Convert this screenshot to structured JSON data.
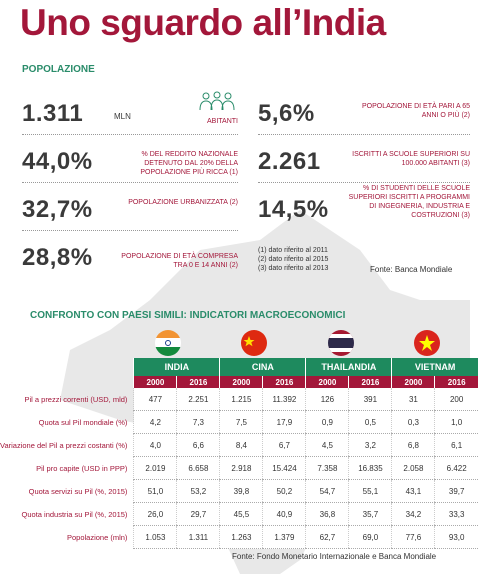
{
  "header": {
    "title": "Uno sguardo all’India"
  },
  "population": {
    "heading": "POPOLAZIONE",
    "stats": [
      {
        "value": "1.311",
        "unit": "MLN",
        "label": "ABITANTI"
      },
      {
        "value": "44,0%",
        "label": "% DEL REDDITO NAZIONALE DETENUTO DAL 20% DELLA POPOLAZIONE PIÙ RICCA (1)"
      },
      {
        "value": "32,7%",
        "label": "POPOLAZIONE URBANIZZATA (2)"
      },
      {
        "value": "28,8%",
        "label": "POPOLAZIONE DI ETÀ COMPRESA TRA 0 E 14 ANNI (2)"
      },
      {
        "value": "5,6%",
        "label": "POPOLAZIONE DI ETÀ PARI A 65 ANNI O PIÙ (2)"
      },
      {
        "value": "2.261",
        "label": "ISCRITTI A SCUOLE SUPERIORI SU 100.000 ABITANTI (3)"
      },
      {
        "value": "14,5%",
        "label": "% DI STUDENTI DELLE SCUOLE SUPERIORI ISCRITTI A PROGRAMMI DI INGEGNERIA, INDUSTRIA E COSTRUZIONI (3)"
      }
    ],
    "notes": [
      "(1) dato riferito al 2011",
      "(2) dato riferito al 2015",
      "(3) dato riferito al 2013"
    ],
    "source": "Fonte: Banca Mondiale"
  },
  "comparison": {
    "heading": "CONFRONTO CON PAESI SIMILI: INDICATORI MACROECONOMICI",
    "countries": [
      "INDIA",
      "CINA",
      "THAILANDIA",
      "VIETNAM"
    ],
    "years": [
      "2000",
      "2016"
    ],
    "rows": [
      {
        "label": "Pil a prezzi correnti (USD, mld)",
        "values": [
          "477",
          "2.251",
          "1.215",
          "11.392",
          "126",
          "391",
          "31",
          "200"
        ]
      },
      {
        "label": "Quota sul Pil mondiale (%)",
        "values": [
          "4,2",
          "7,3",
          "7,5",
          "17,9",
          "0,9",
          "0,5",
          "0,3",
          "1,0"
        ]
      },
      {
        "label": "Variazione del Pil a prezzi costanti (%)",
        "values": [
          "4,0",
          "6,6",
          "8,4",
          "6,7",
          "4,5",
          "3,2",
          "6,8",
          "6,1"
        ]
      },
      {
        "label": "Pil pro capite (USD in PPP)",
        "values": [
          "2.019",
          "6.658",
          "2.918",
          "15.424",
          "7.358",
          "16.835",
          "2.058",
          "6.422"
        ]
      },
      {
        "label": "Quota servizi su Pil (%, 2015)",
        "values": [
          "51,0",
          "53,2",
          "39,8",
          "50,2",
          "54,7",
          "55,1",
          "43,1",
          "39,7"
        ]
      },
      {
        "label": "Quota industria su Pil (%, 2015)",
        "values": [
          "26,0",
          "29,7",
          "45,5",
          "40,9",
          "36,8",
          "35,7",
          "34,2",
          "33,3"
        ]
      },
      {
        "label": "Popolazione (mln)",
        "values": [
          "1.053",
          "1.311",
          "1.263",
          "1.379",
          "62,7",
          "69,0",
          "77,6",
          "93,0"
        ]
      }
    ],
    "source": "Fonte: Fondo Monetario Internazionale e Banca Mondiale"
  }
}
